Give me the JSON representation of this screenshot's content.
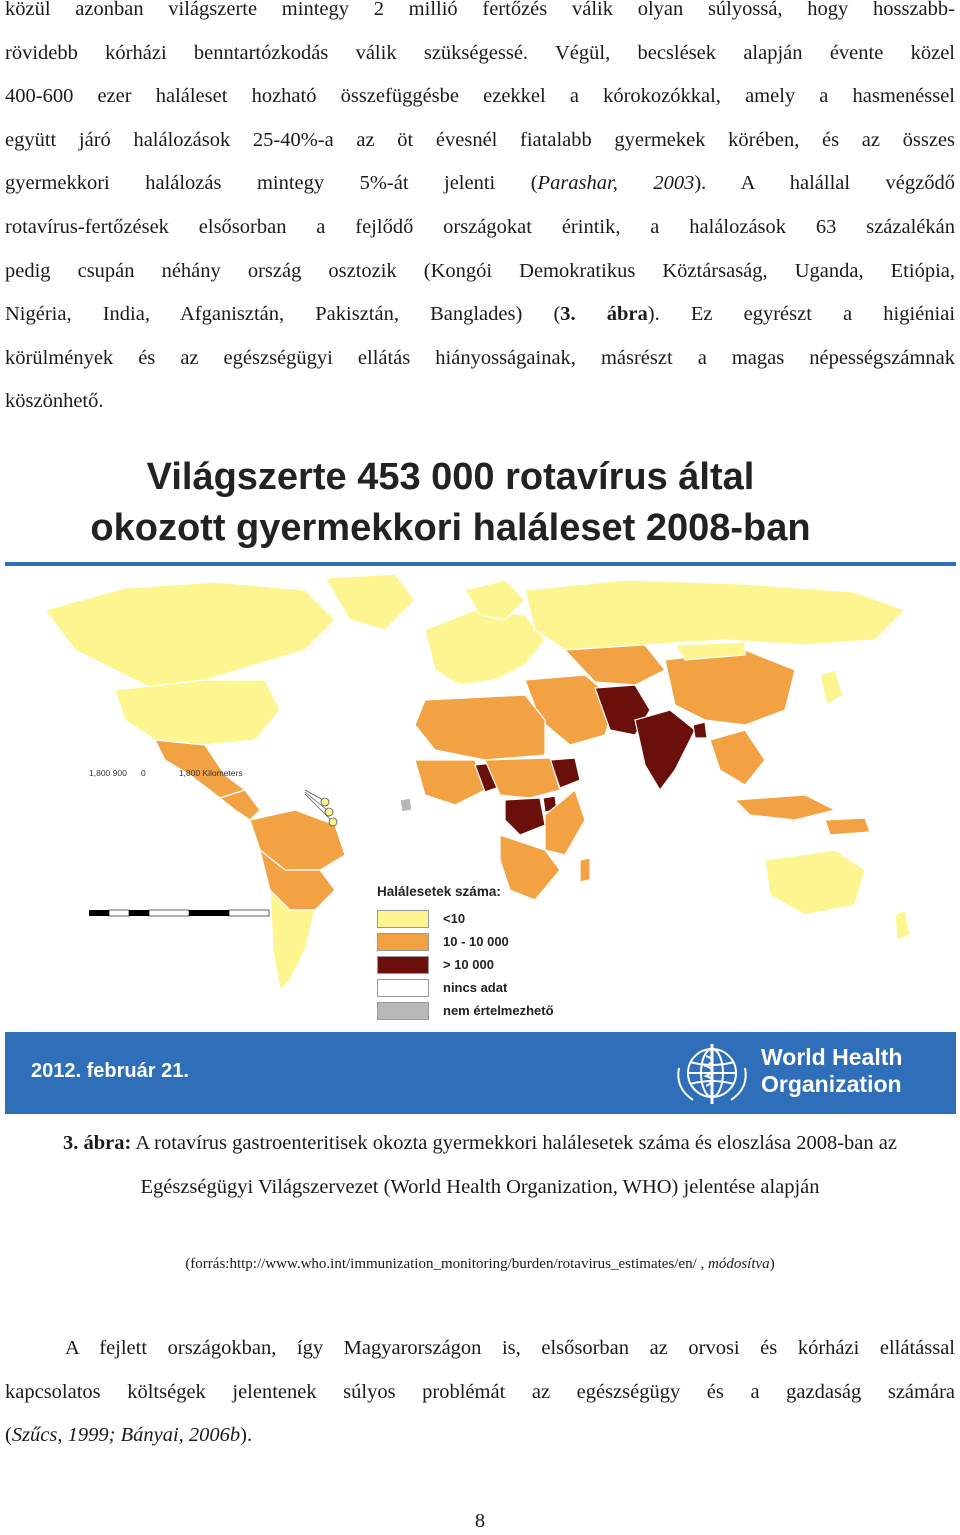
{
  "paragraph1": {
    "lines": [
      "közül azonban világszerte mintegy 2 millió fertőzés válik olyan súlyossá, hogy hosszabb-",
      "rövidebb kórházi benntartózkodás válik szükségessé. Végül, becslések alapján évente közel",
      "400-600 ezer haláleset hozható összefüggésbe ezekkel a kórokozókkal, amely a hasmenéssel",
      "együtt járó halálozások 25-40%-a az öt évesnél fiatalabb gyermekek körében, és az összes"
    ],
    "line5_a": "gyermekkori halálozás mintegy 5%-át jelenti (",
    "line5_cite": "Parashar, 2003",
    "line5_b": "). A halállal végződő",
    "line6": "rotavírus-fertőzések elsősorban a fejlődő országokat érintik, a halálozások 63 százalékán",
    "line7": "pedig csupán néhány ország osztozik (Kongói Demokratikus Köztársaság, Uganda, Etiópia,",
    "line8_a": "Nigéria, India, Afganisztán, Pakisztán, Banglades) (",
    "line8_ref": "3. ábra",
    "line8_b": "). Ez egyrészt a higiéniai",
    "line9": "körülmények és az egészségügyi ellátás hiányosságainak, másrészt a magas népességszámnak",
    "line10": "köszönhető."
  },
  "figure": {
    "title_line1": "Világszerte 453 000 rotavírus által",
    "title_line2": "okozott gyermekkori haláleset 2008-ban",
    "scale_labels": [
      "1,800",
      "900",
      "0",
      "1,800 Kilometers"
    ],
    "legend": {
      "title": "Halálesetek száma:",
      "items": [
        {
          "label": "<10",
          "color": "#fdf58f"
        },
        {
          "label": "10 - 10 000",
          "color": "#f2a243"
        },
        {
          "label": "> 10 000",
          "color": "#6b0f0a"
        },
        {
          "label": "nincs adat",
          "color": "#ffffff"
        },
        {
          "label": "nem értelmezhető",
          "color": "#b8b8b8"
        }
      ]
    },
    "date": "2012. február 21.",
    "org_line1": "World Health",
    "org_line2": "Organization",
    "colors": {
      "accent": "#2f6eb8",
      "low": "#fdf58f",
      "mid": "#f2a243",
      "high": "#6b0f0a",
      "na": "#b8b8b8"
    }
  },
  "caption": {
    "label": "3. ábra:",
    "text": " A rotavírus gastroenteritisek okozta gyermekkori halálesetek száma és eloszlása 2008-ban az Egészségügyi Világszervezet (World Health Organization, WHO) jelentése alapján",
    "source_a": "(forrás:http://www.who.int/immunization_monitoring/burden/rotavirus_estimates/en/ , ",
    "source_mod": "módosítva",
    "source_b": ")"
  },
  "paragraph2": {
    "line1": "A fejlett országokban, így Magyarországon is, elsősorban az orvosi és kórházi ellátással",
    "line2": "kapcsolatos költségek jelentenek súlyos problémát az egészségügy és a gazdaság számára",
    "line3_a": "(",
    "line3_cite": "Szűcs, 1999; Bányai, 2006b",
    "line3_b": ")."
  },
  "page_number": "8"
}
